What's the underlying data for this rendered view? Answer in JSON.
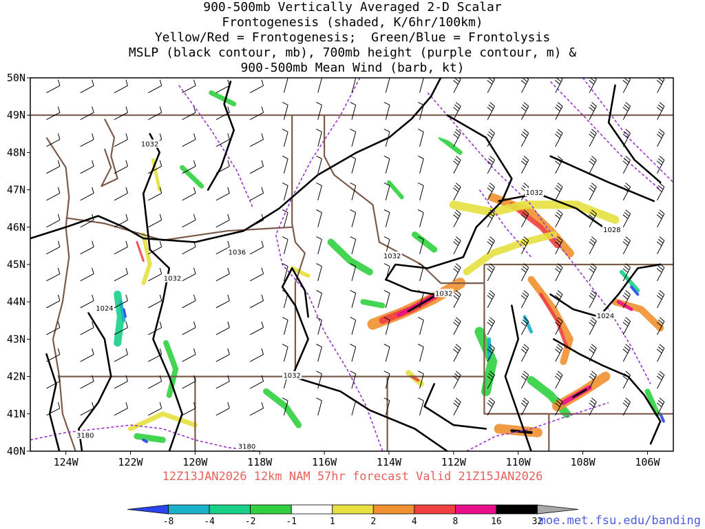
{
  "title": {
    "lines": [
      "900-500mb Vertically Averaged 2-D Scalar",
      "Frontogenesis (shaded, K/6hr/100km)",
      "Yellow/Red = Frontogenesis;  Green/Blue = Frontolysis",
      "MSLP (black contour, mb), 700mb height (purple contour, m) &",
      "900-500mb Mean Wind (barb, kt)"
    ]
  },
  "map": {
    "lat_labels": [
      "50N",
      "49N",
      "48N",
      "47N",
      "46N",
      "45N",
      "44N",
      "43N",
      "42N",
      "41N",
      "40N"
    ],
    "lon_labels": [
      "124W",
      "122W",
      "120W",
      "118W",
      "116W",
      "114W",
      "112W",
      "110W",
      "108W",
      "106W"
    ],
    "contour_labels": [
      {
        "text": "1032",
        "lon": -121.4,
        "lat": 48.2
      },
      {
        "text": "1036",
        "lon": -118.7,
        "lat": 45.3
      },
      {
        "text": "1032",
        "lon": -120.7,
        "lat": 44.6
      },
      {
        "text": "1024",
        "lon": -122.8,
        "lat": 43.8
      },
      {
        "text": "1032",
        "lon": -113.9,
        "lat": 45.2
      },
      {
        "text": "1032",
        "lon": -112.3,
        "lat": 44.2
      },
      {
        "text": "1032",
        "lon": -117.0,
        "lat": 42.0
      },
      {
        "text": "1032",
        "lon": -109.5,
        "lat": 46.9
      },
      {
        "text": "1028",
        "lon": -107.1,
        "lat": 45.9
      },
      {
        "text": "1024",
        "lon": -107.3,
        "lat": 43.6
      },
      {
        "text": "3180",
        "lon": -123.4,
        "lat": 40.4
      },
      {
        "text": "3180",
        "lon": -118.4,
        "lat": 40.1
      }
    ],
    "colors": {
      "mslp_contour": "#000000",
      "height_contour": "#9a2fd0",
      "borders": "#7a5a4a",
      "barbs": "#000000"
    }
  },
  "footer": {
    "forecast_text": "12Z13JAN2026 12km NAM 57hr forecast Valid 21Z15JAN2026"
  },
  "colorbar": {
    "labels": [
      "-8",
      "-4",
      "-2",
      "-1",
      "1",
      "2",
      "4",
      "8",
      "16",
      "32"
    ],
    "colors": [
      "#2a44f0",
      "#1ab0c8",
      "#18d088",
      "#30d040",
      "#ffffff",
      "#e6e040",
      "#f09030",
      "#f04040",
      "#e8108a",
      "#000000",
      "#a8a8a8"
    ]
  },
  "url": "moe.met.fsu.edu/banding"
}
